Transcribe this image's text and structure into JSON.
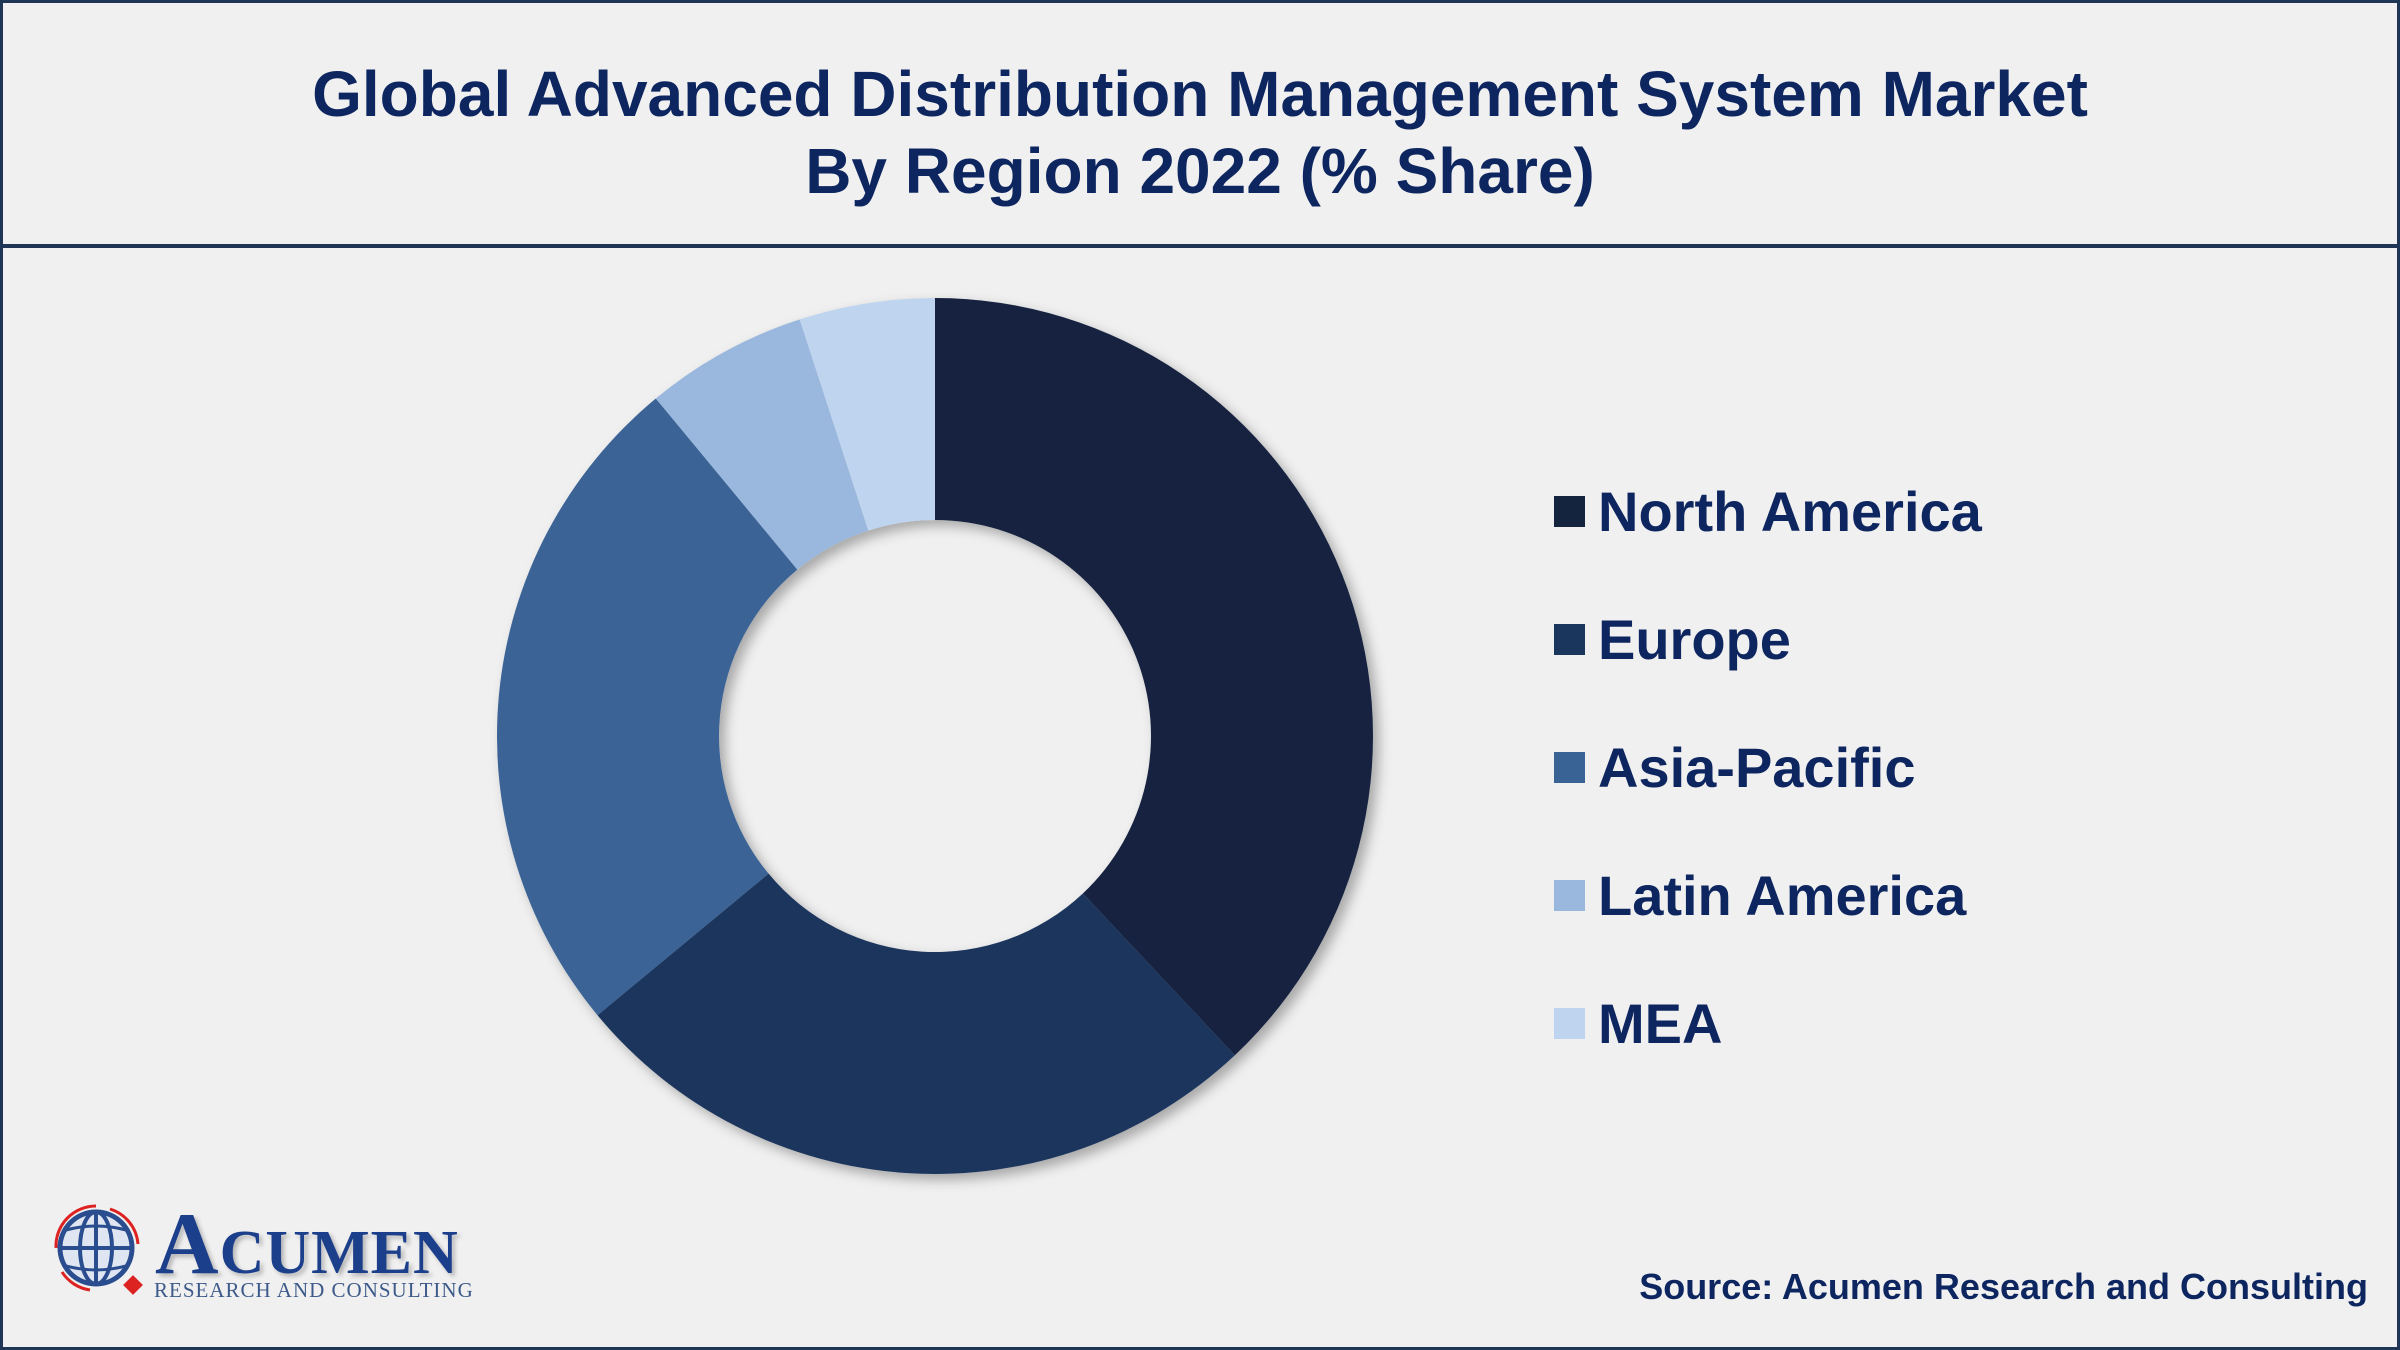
{
  "title_line1": "Global Advanced Distribution Management System Market",
  "title_line2": "By Region 2022 (% Share)",
  "source": "Source: Acumen Research and Consulting",
  "logo": {
    "name": "ACUMEN",
    "tagline": "RESEARCH AND CONSULTING"
  },
  "colors": {
    "title": "#0e2660",
    "border": "#1f3556",
    "background": "#f0f0f0"
  },
  "chart_data": {
    "type": "pie",
    "variant": "donut",
    "title": "Global Advanced Distribution Management System Market By Region 2022 (% Share)",
    "legend_position": "right",
    "categories": [
      "North America",
      "Europe",
      "Asia-Pacific",
      "Latin America",
      "MEA"
    ],
    "values": [
      38,
      26,
      25,
      6,
      5
    ],
    "unit": "%",
    "colors": [
      "#14243f",
      "#1b365d",
      "#3a6395",
      "#9ab7dd",
      "#bfd4ee"
    ]
  }
}
